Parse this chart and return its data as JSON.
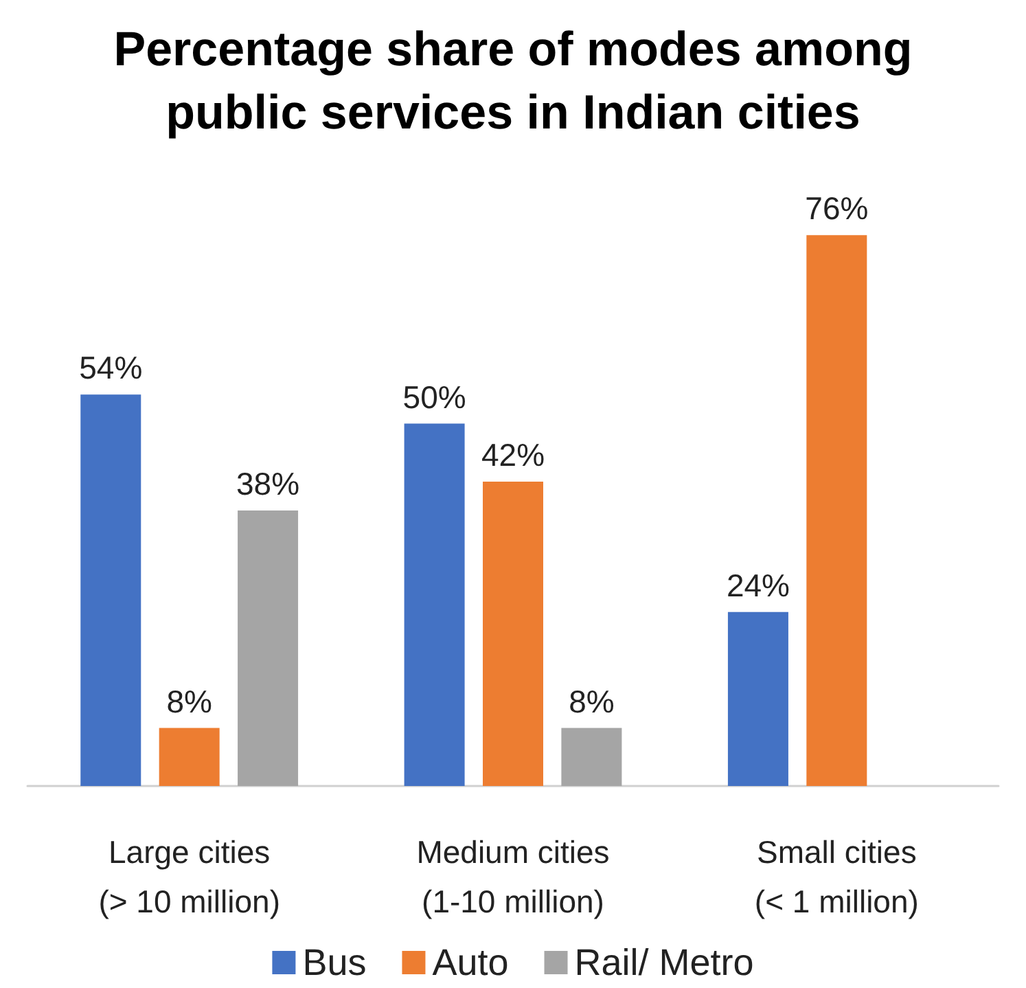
{
  "chart_data": {
    "type": "bar",
    "title": "Percentage share of modes among\npublic services in Indian cities",
    "categories": [
      "Large cities\n(> 10 million)",
      "Medium cities\n(1-10 million)",
      "Small cities\n(< 1 million)"
    ],
    "series": [
      {
        "name": "Bus",
        "color": "#4472c4",
        "values": [
          54,
          50,
          24
        ],
        "value_labels": [
          "54%",
          "50%",
          "24%"
        ]
      },
      {
        "name": "Auto",
        "color": "#ed7d31",
        "values": [
          8,
          42,
          76
        ],
        "value_labels": [
          "8%",
          "42%",
          "76%"
        ]
      },
      {
        "name": "Rail/ Metro",
        "color": "#a5a5a5",
        "values": [
          38,
          8,
          null
        ],
        "value_labels": [
          "38%",
          "8%",
          null
        ]
      }
    ],
    "grid": false,
    "legend": "bottom"
  }
}
